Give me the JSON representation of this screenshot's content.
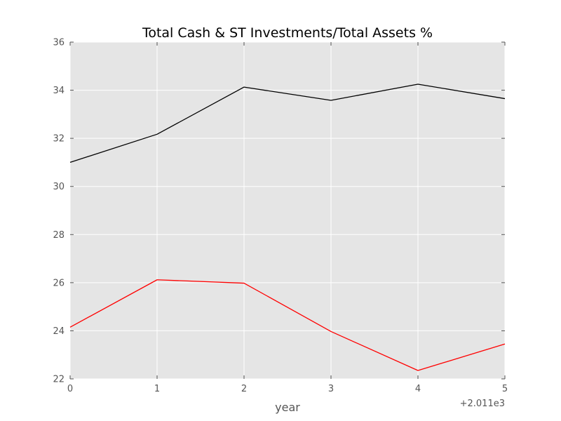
{
  "chart_data": {
    "type": "line",
    "title": "Total Cash & ST Investments/Total Assets %",
    "xlabel": "year",
    "ylabel": "",
    "x_offset_label": "+2.011e3",
    "x": [
      0,
      1,
      2,
      3,
      4,
      5
    ],
    "xlim": [
      0,
      5
    ],
    "ylim": [
      22,
      36
    ],
    "xticks": [
      0,
      1,
      2,
      3,
      4,
      5
    ],
    "yticks": [
      22,
      24,
      26,
      28,
      30,
      32,
      34,
      36
    ],
    "grid": true,
    "series": [
      {
        "values": [
          31.0,
          32.17,
          34.13,
          33.58,
          34.25,
          33.65
        ],
        "color": "#000000"
      },
      {
        "values": [
          24.15,
          26.12,
          25.98,
          23.97,
          22.35,
          23.45
        ],
        "color": "#ff0000"
      }
    ]
  },
  "colors": {
    "plot_background": "#e5e5e5",
    "grid": "#ffffff",
    "tick": "#555555"
  }
}
